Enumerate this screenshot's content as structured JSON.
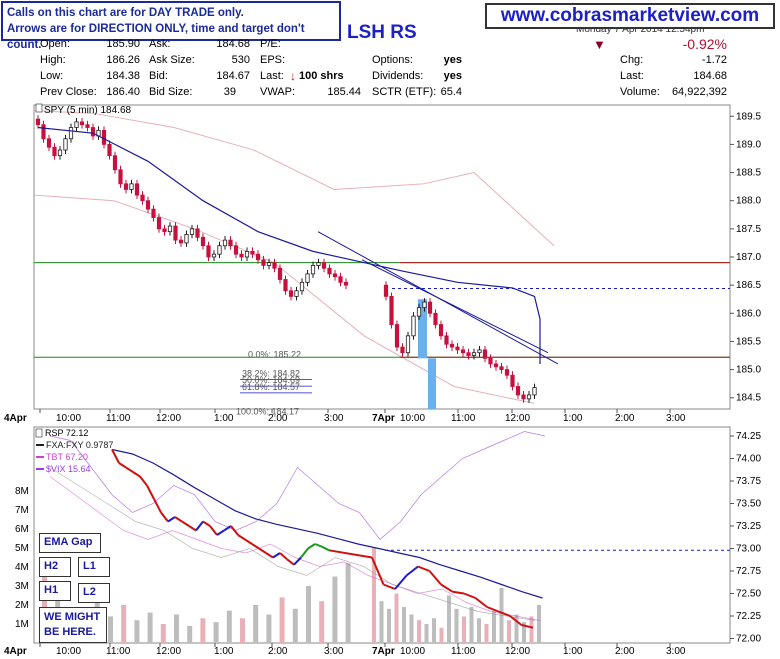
{
  "note": {
    "line1": "Calls on this chart are for DAY TRADE only.",
    "line2": "Arrows are for DIRECTION ONLY, time and target don't count."
  },
  "website": "www.cobrasmarketview.com",
  "ticker_fragment": "LSH RS",
  "header_date_partial": "Monday  7 Apr 2014  12:54pm",
  "quote": {
    "open_label": "Open:",
    "open": "185.90",
    "high_label": "High:",
    "high": "186.26",
    "low_label": "Low:",
    "low": "184.38",
    "prevclose_label": "Prev Close:",
    "prevclose": "186.40",
    "ask_label": "Ask:",
    "ask": "184.68",
    "asksize_label": "Ask Size:",
    "asksize": "530",
    "bid_label": "Bid:",
    "bid": "184.67",
    "bidsize_label": "Bid Size:",
    "bidsize": "39",
    "pe_label": "P/E:",
    "pe": "",
    "eps_label": "EPS:",
    "eps": "",
    "last_label": "Last:",
    "last_shares": "100 shrs",
    "vwap_label": "VWAP:",
    "vwap": "185.44",
    "options_label": "Options:",
    "options": "yes",
    "dividends_label": "Dividends:",
    "dividends": "yes",
    "sctr_label": "SCTR (ETF):",
    "sctr": "65.4",
    "pct_change": "-0.92%",
    "chg_label": "Chg:",
    "chg": "-1.72",
    "last2_label": "Last:",
    "last2": "184.68",
    "volume_label": "Volume:",
    "volume": "64,922,392"
  },
  "colors": {
    "up": "#1e1e1e",
    "down": "#c8103c",
    "ema": "#1a1a9a",
    "green_level": "#1a8a1a",
    "red_level": "#b81818",
    "blue_dash": "#1a1acc",
    "cloud": "#e7b0b8",
    "highlight": "#6ab0ec",
    "rsp_ema": "#1a1a9a",
    "tbt": "#cc44cc",
    "vix": "#9a40e0",
    "fxa": "#999999"
  },
  "chart_data": [
    {
      "type": "candlestick",
      "title": "SPY (5 min) 184.68",
      "ylim": [
        184.3,
        189.7
      ],
      "yticks": [
        184.5,
        185.0,
        185.5,
        186.0,
        186.5,
        187.0,
        187.5,
        188.0,
        188.5,
        189.0,
        189.5
      ],
      "ytick_labels": [
        "184.5",
        "185.0",
        "185.5",
        "186.0",
        "186.5",
        "187.0",
        "187.5",
        "188.0",
        "188.5",
        "189.0",
        "189.5"
      ],
      "xtick_labels": [
        "4Apr",
        "10:00",
        "11:00",
        "12:00",
        "1:00",
        "2:00",
        "3:00",
        "7Apr",
        "10:00",
        "11:00",
        "12:00",
        "1:00",
        "2:00",
        "3:00"
      ],
      "levels": {
        "green": [
          186.9,
          185.22
        ],
        "red": [
          186.9,
          185.22
        ],
        "blue_dashed": 186.44
      },
      "fib_labels": [
        "0.0%: 185.22",
        "38.2%: 184.82",
        "50.0%: 184.69",
        "61.8%: 184.57",
        "100.0%: 184.17"
      ],
      "closes": [
        189.35,
        189.1,
        188.95,
        188.8,
        188.9,
        189.1,
        189.3,
        189.4,
        189.35,
        189.3,
        189.15,
        189.25,
        189.0,
        188.8,
        188.55,
        188.3,
        188.2,
        188.3,
        188.1,
        188.0,
        187.85,
        187.7,
        187.5,
        187.45,
        187.55,
        187.3,
        187.25,
        187.4,
        187.5,
        187.35,
        187.2,
        187.0,
        187.05,
        187.2,
        187.3,
        187.2,
        187.05,
        187.0,
        187.1,
        187.05,
        186.95,
        186.85,
        186.9,
        186.8,
        186.6,
        186.4,
        186.3,
        186.4,
        186.55,
        186.7,
        186.85,
        186.9,
        186.8,
        186.7,
        186.65,
        186.55,
        186.5,
        186.3,
        185.8,
        185.4,
        185.3,
        185.6,
        185.95,
        186.1,
        186.2,
        186.0,
        185.8,
        185.6,
        185.45,
        185.4,
        185.35,
        185.3,
        185.25,
        185.3,
        185.35,
        185.2,
        185.1,
        185.05,
        185.0,
        184.9,
        184.7,
        184.55,
        184.48,
        184.55,
        184.68
      ],
      "ema_points": [
        [
          0,
          189.3
        ],
        [
          10,
          189.2
        ],
        [
          20,
          188.7
        ],
        [
          30,
          188.0
        ],
        [
          40,
          187.45
        ],
        [
          50,
          187.1
        ],
        [
          60,
          186.75
        ],
        [
          70,
          186.55
        ],
        [
          80,
          186.45
        ],
        [
          84,
          186.3
        ],
        [
          90,
          185.9
        ],
        [
          100,
          185.55
        ],
        [
          108,
          185.3
        ],
        [
          118,
          185.1
        ]
      ],
      "trendlines": [
        [
          [
            44,
            187.45
          ],
          [
            119,
            185.1
          ]
        ],
        [
          [
            52,
            186.95
          ],
          [
            118,
            185.3
          ]
        ]
      ],
      "highlight_bars": [
        {
          "at": 70,
          "from": 186.25,
          "to": 185.2
        },
        {
          "at": 72,
          "from": 185.2,
          "to": 184.3
        }
      ]
    },
    {
      "type": "line",
      "title": "RSP 72.12",
      "ylim": [
        71.95,
        74.35
      ],
      "yticks": [
        72.0,
        72.25,
        72.5,
        72.75,
        73.0,
        73.25,
        73.5,
        73.75,
        74.0,
        74.25
      ],
      "ytick_labels": [
        "72.00",
        "72.25",
        "72.50",
        "72.75",
        "73.00",
        "73.25",
        "73.50",
        "73.75",
        "74.00",
        "74.25"
      ],
      "volume_ticks": [
        "1M",
        "2M",
        "3M",
        "4M",
        "5M",
        "6M",
        "7M",
        "8M"
      ],
      "xtick_labels": [
        "4Apr",
        "10:00",
        "11:00",
        "12:00",
        "1:00",
        "2:00",
        "3:00",
        "7Apr",
        "10:00",
        "11:00",
        "12:00",
        "1:00",
        "2:00",
        "3:00"
      ],
      "blue_dashed": 72.98,
      "legend": [
        "FXA:FXY 0.9787",
        "TBT 67.20",
        "$VIX 15.64"
      ],
      "rsp": [
        74.1,
        73.95,
        73.9,
        73.85,
        73.8,
        73.7,
        73.55,
        73.4,
        73.3,
        73.35,
        73.3,
        73.25,
        73.2,
        73.3,
        73.25,
        73.15,
        73.2,
        73.25,
        73.15,
        73.1,
        73.05,
        73.0,
        72.95,
        72.9,
        72.95,
        72.88,
        72.82,
        72.9,
        73.0,
        73.05,
        73.02,
        72.98,
        72.9,
        72.6,
        72.55,
        72.7,
        72.8,
        72.75,
        72.6,
        72.52,
        72.5,
        72.45,
        72.35,
        72.3,
        72.25,
        72.15,
        72.12
      ],
      "rsp_ema": [
        74.1,
        74.05,
        73.95,
        73.82,
        73.68,
        73.55,
        73.42,
        73.33,
        73.27,
        73.22,
        73.17,
        73.11,
        73.05,
        73.0,
        72.95,
        72.9,
        72.82,
        72.75,
        72.68,
        72.6,
        72.52,
        72.45
      ],
      "vix": [
        74.25,
        74.2,
        73.9,
        73.6,
        73.4,
        73.5,
        73.7,
        73.6,
        73.3,
        73.2,
        73.3,
        73.5,
        73.9,
        73.7,
        73.5,
        73.4,
        73.1,
        73.3,
        73.6,
        73.8,
        74.0,
        74.1,
        74.2,
        74.3,
        74.25
      ],
      "tbt": [
        73.8,
        73.6,
        73.4,
        73.2,
        73.1,
        73.2,
        73.1,
        73.0,
        72.95,
        73.05,
        72.9,
        72.8,
        72.85,
        72.7,
        72.6,
        72.5,
        72.55,
        72.4,
        72.3,
        72.25,
        72.2
      ],
      "fxa": [
        73.9,
        73.7,
        73.5,
        73.3,
        73.2,
        73.0,
        72.9,
        73.0,
        72.8,
        72.7,
        72.9,
        72.8,
        72.6,
        72.5,
        72.4,
        72.3,
        72.25,
        72.2
      ],
      "volume_m": [
        4.5,
        2.8,
        1.6,
        1.9,
        2.2,
        1.4,
        2.0,
        1.2,
        1.6,
        1.0,
        1.5,
        0.9,
        1.3,
        1.1,
        1.7,
        1.3,
        2.0,
        1.5,
        2.4,
        1.8,
        3.0,
        2.2,
        3.5,
        4.2,
        5.0,
        2.2,
        1.8,
        2.6,
        1.9,
        1.5,
        1.2,
        1.0,
        1.3,
        0.8,
        2.5,
        1.8,
        1.4,
        1.9,
        1.3,
        1.0,
        1.7,
        2.9,
        1.2,
        1.5,
        1.1,
        1.4,
        2.0
      ]
    }
  ],
  "buttons": {
    "ema_gap": "EMA Gap",
    "h2": "H2",
    "l1": "L1",
    "h1": "H1",
    "l2": "L2",
    "might": "WE MIGHT\nBE HERE."
  }
}
